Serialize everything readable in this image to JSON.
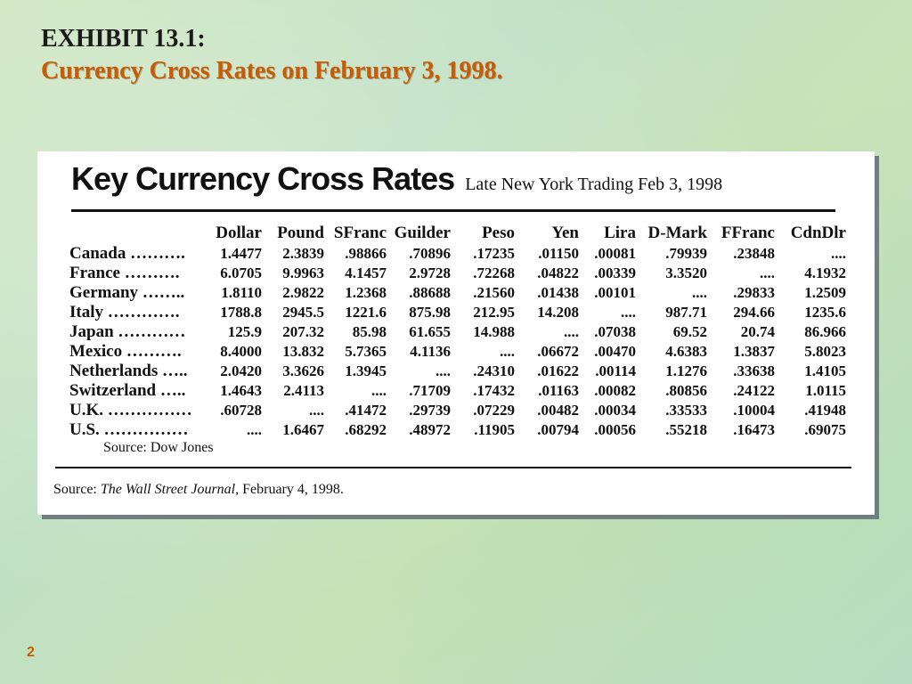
{
  "slide": {
    "exhibit": "EXHIBIT 13.1:",
    "subtitle": "Currency Cross Rates on February 3, 1998.",
    "page_number": "2"
  },
  "table": {
    "title": "Key Currency Cross Rates",
    "subtitle": "Late New York Trading Feb 3, 1998",
    "columns": [
      "Dollar",
      "Pound",
      "SFranc",
      "Guilder",
      "Peso",
      "Yen",
      "Lira",
      "D-Mark",
      "FFranc",
      "CdnDlr"
    ],
    "rows": [
      {
        "country": "Canada ……….",
        "values": [
          "1.4477",
          "2.3839",
          ".98866",
          ".70896",
          ".17235",
          ".01150",
          ".00081",
          ".79939",
          ".23848",
          "...."
        ]
      },
      {
        "country": "France ……….",
        "values": [
          "6.0705",
          "9.9963",
          "4.1457",
          "2.9728",
          ".72268",
          ".04822",
          ".00339",
          "3.3520",
          "....",
          "4.1932"
        ]
      },
      {
        "country": "Germany ……..",
        "values": [
          "1.8110",
          "2.9822",
          "1.2368",
          ".88688",
          ".21560",
          ".01438",
          ".00101",
          "....",
          ".29833",
          "1.2509"
        ]
      },
      {
        "country": "Italy ………….",
        "values": [
          "1788.8",
          "2945.5",
          "1221.6",
          "875.98",
          "212.95",
          "14.208",
          "....",
          "987.71",
          "294.66",
          "1235.6"
        ]
      },
      {
        "country": "Japan …………",
        "values": [
          "125.9",
          "207.32",
          "85.98",
          "61.655",
          "14.988",
          "....",
          ".07038",
          "69.52",
          "20.74",
          "86.966"
        ]
      },
      {
        "country": "Mexico ……….",
        "values": [
          "8.4000",
          "13.832",
          "5.7365",
          "4.1136",
          "....",
          ".06672",
          ".00470",
          "4.6383",
          "1.3837",
          "5.8023"
        ]
      },
      {
        "country": "Netherlands …..",
        "values": [
          "2.0420",
          "3.3626",
          "1.3945",
          "....",
          ".24310",
          ".01622",
          ".00114",
          "1.1276",
          ".33638",
          "1.4105"
        ]
      },
      {
        "country": "Switzerland …..",
        "values": [
          "1.4643",
          "2.4113",
          "....",
          ".71709",
          ".17432",
          ".01163",
          ".00082",
          ".80856",
          ".24122",
          "1.0115"
        ]
      },
      {
        "country": "U.K. ……………",
        "values": [
          ".60728",
          "....",
          ".41472",
          ".29739",
          ".07229",
          ".00482",
          ".00034",
          ".33533",
          ".10004",
          ".41948"
        ]
      },
      {
        "country": "U.S. ……………",
        "values": [
          "....",
          "1.6467",
          ".68292",
          ".48972",
          ".11905",
          ".00794",
          ".00056",
          ".55218",
          ".16473",
          ".69075"
        ]
      }
    ],
    "source_inner": "Source: Dow Jones"
  },
  "footer_source": {
    "prefix": "Source: ",
    "publication": "The Wall Street Journal,",
    "date": " February 4, 1998."
  }
}
